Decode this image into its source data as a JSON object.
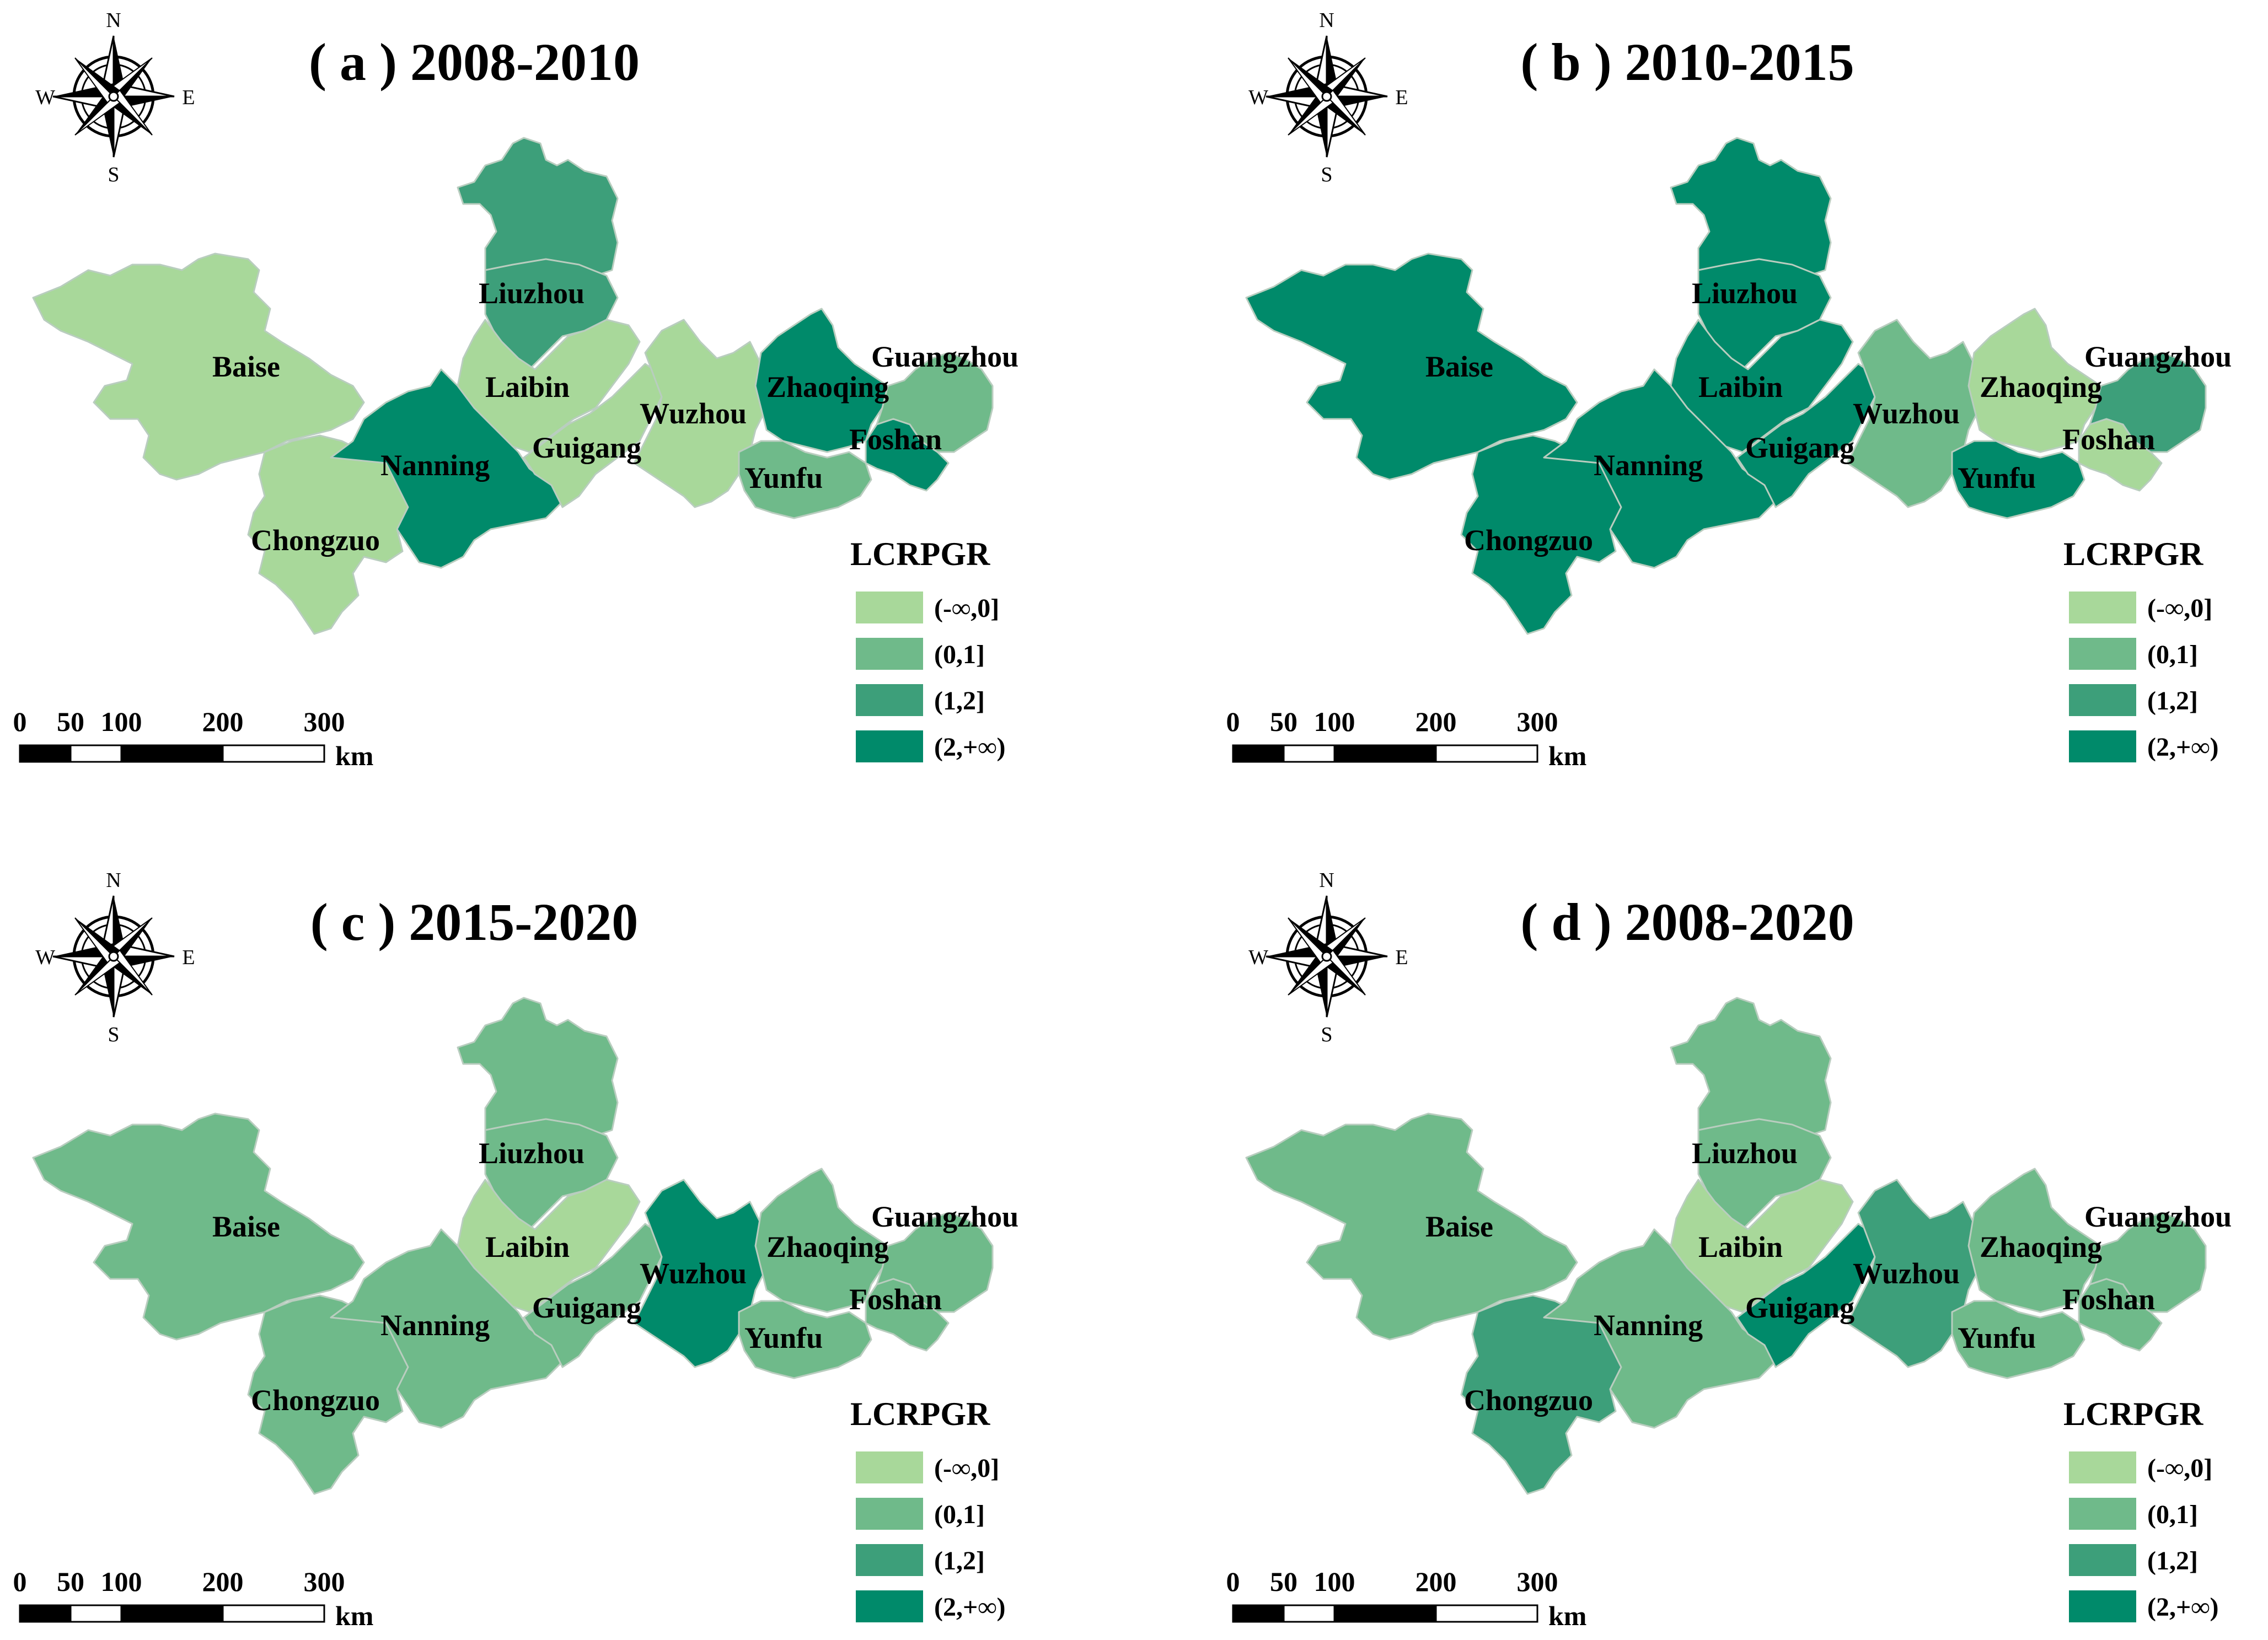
{
  "colors": {
    "c0": "#a8d89a",
    "c1": "#6fba8a",
    "c2": "#3d9f7a",
    "c3": "#008a6a"
  },
  "legend": {
    "title": "LCRPGR",
    "classes": [
      {
        "label": "(-∞,0]",
        "color_key": "c0"
      },
      {
        "label": "(0,1]",
        "color_key": "c1"
      },
      {
        "label": "(1,2]",
        "color_key": "c2"
      },
      {
        "label": "(2,+∞)",
        "color_key": "c3"
      }
    ]
  },
  "scale_bar": {
    "ticks": [
      "0",
      "50",
      "100",
      "200",
      "300"
    ],
    "unit": "km"
  },
  "compass": {
    "n": "N",
    "s": "S",
    "e": "E",
    "w": "W"
  },
  "panels": [
    {
      "title": "( a ) 2008-2010",
      "classes": {
        "Baise": "c0",
        "Chongzuo": "c0",
        "Nanning": "c3",
        "Liuzhou": "c2",
        "Liuzhou_north": "c2",
        "Laibin": "c0",
        "Guigang": "c0",
        "Wuzhou": "c0",
        "Yunfu": "c1",
        "Zhaoqing": "c3",
        "Foshan": "c3",
        "Guangzhou": "c1"
      }
    },
    {
      "title": "( b ) 2010-2015",
      "classes": {
        "Baise": "c3",
        "Chongzuo": "c3",
        "Nanning": "c3",
        "Liuzhou": "c3",
        "Liuzhou_north": "c3",
        "Laibin": "c3",
        "Guigang": "c3",
        "Wuzhou": "c1",
        "Yunfu": "c3",
        "Zhaoqing": "c0",
        "Foshan": "c0",
        "Guangzhou": "c2"
      }
    },
    {
      "title": "( c ) 2015-2020",
      "classes": {
        "Baise": "c1",
        "Chongzuo": "c1",
        "Nanning": "c1",
        "Liuzhou": "c1",
        "Liuzhou_north": "c1",
        "Laibin": "c0",
        "Guigang": "c1",
        "Wuzhou": "c3",
        "Yunfu": "c1",
        "Zhaoqing": "c1",
        "Foshan": "c1",
        "Guangzhou": "c1"
      }
    },
    {
      "title": "( d ) 2008-2020",
      "classes": {
        "Baise": "c1",
        "Chongzuo": "c2",
        "Nanning": "c1",
        "Liuzhou": "c1",
        "Liuzhou_north": "c1",
        "Laibin": "c0",
        "Guigang": "c3",
        "Wuzhou": "c2",
        "Yunfu": "c1",
        "Zhaoqing": "c1",
        "Foshan": "c1",
        "Guangzhou": "c1"
      }
    }
  ],
  "city_labels": {
    "Baise": "Baise",
    "Chongzuo": "Chongzuo",
    "Nanning": "Nanning",
    "Liuzhou": "Liuzhou",
    "Laibin": "Laibin",
    "Guigang": "Guigang",
    "Wuzhou": "Wuzhou",
    "Yunfu": "Yunfu",
    "Zhaoqing": "Zhaoqing",
    "Foshan": "Foshan",
    "Guangzhou": "Guangzhou"
  }
}
